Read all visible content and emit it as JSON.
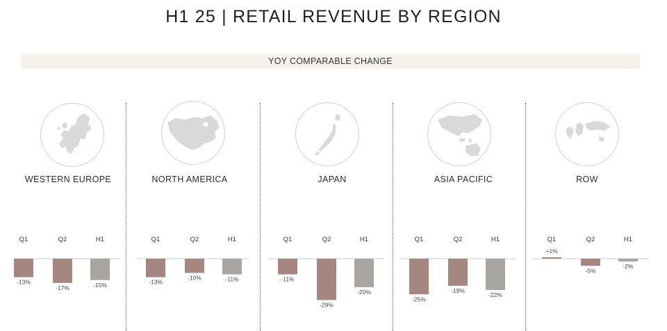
{
  "title": "H1 25 | RETAIL REVENUE BY REGION",
  "banner": "YOY COMPARABLE CHANGE",
  "colors": {
    "q1": "#a68680",
    "q2": "#a68680",
    "h1": "#a9a6a1",
    "banner_bg": "#f6f1ea",
    "map": "#d9d9d9"
  },
  "regions": [
    {
      "name": "WESTERN EUROPE",
      "icon": "europe-map-icon"
    },
    {
      "name": "NORTH AMERICA",
      "icon": "north-america-map-icon"
    },
    {
      "name": "JAPAN",
      "icon": "japan-map-icon"
    },
    {
      "name": "ASIA PACIFIC",
      "icon": "asia-pacific-map-icon"
    },
    {
      "name": "ROW",
      "icon": "world-map-icon"
    }
  ],
  "chart_data": [
    {
      "type": "bar",
      "title": "WESTERN EUROPE",
      "categories": [
        "Q1",
        "Q2",
        "H1"
      ],
      "values": [
        -13,
        -17,
        -15
      ],
      "labels": [
        "-13%",
        "-17%",
        "-15%"
      ]
    },
    {
      "type": "bar",
      "title": "NORTH AMERICA",
      "categories": [
        "Q1",
        "Q2",
        "H1"
      ],
      "values": [
        -13,
        -10,
        -11
      ],
      "labels": [
        "-13%",
        "-10%",
        "-11%"
      ]
    },
    {
      "type": "bar",
      "title": "JAPAN",
      "categories": [
        "Q1",
        "Q2",
        "H1"
      ],
      "values": [
        -11,
        -29,
        -20
      ],
      "labels": [
        "-11%",
        "-29%",
        "-20%"
      ]
    },
    {
      "type": "bar",
      "title": "ASIA PACIFIC",
      "categories": [
        "Q1",
        "Q2",
        "H1"
      ],
      "values": [
        -25,
        -19,
        -22
      ],
      "labels": [
        "-25%",
        "-19%",
        "-22%"
      ]
    },
    {
      "type": "bar",
      "title": "ROW",
      "categories": [
        "Q1",
        "Q2",
        "H1"
      ],
      "values": [
        1,
        -5,
        -2
      ],
      "labels": [
        "+1%",
        "-5%",
        "-2%"
      ]
    }
  ]
}
